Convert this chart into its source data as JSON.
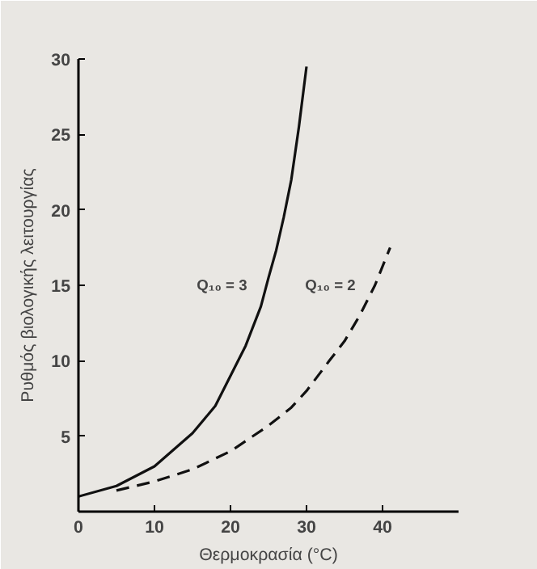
{
  "chart_data": {
    "type": "line",
    "xlabel": "Θερμοκρασία (°C)",
    "ylabel": "Ρυθμός βιολογικής λειτουργίας",
    "xlim": [
      0,
      50
    ],
    "ylim": [
      0,
      30
    ],
    "xticks": [
      0,
      10,
      20,
      30,
      40
    ],
    "yticks": [
      5,
      10,
      15,
      20,
      25,
      30
    ],
    "series": [
      {
        "name": "Q₁₀ = 3",
        "color": "#111111",
        "line_style": "solid",
        "x": [
          0,
          5,
          10,
          15,
          18,
          20,
          22,
          24,
          25,
          26,
          27,
          28,
          29,
          30
        ],
        "values": [
          1,
          1.7,
          3,
          5.2,
          7,
          9,
          11,
          13.6,
          15.5,
          17.3,
          19.5,
          22,
          25.5,
          29.5
        ]
      },
      {
        "name": "Q₁₀ = 2",
        "color": "#111111",
        "line_style": "dashed",
        "x": [
          5,
          10,
          15,
          20,
          25,
          28,
          30,
          33,
          35,
          37,
          39,
          41
        ],
        "values": [
          1.4,
          2,
          2.8,
          4,
          5.7,
          6.9,
          8,
          10,
          11.3,
          13,
          15,
          17.5
        ]
      }
    ]
  }
}
